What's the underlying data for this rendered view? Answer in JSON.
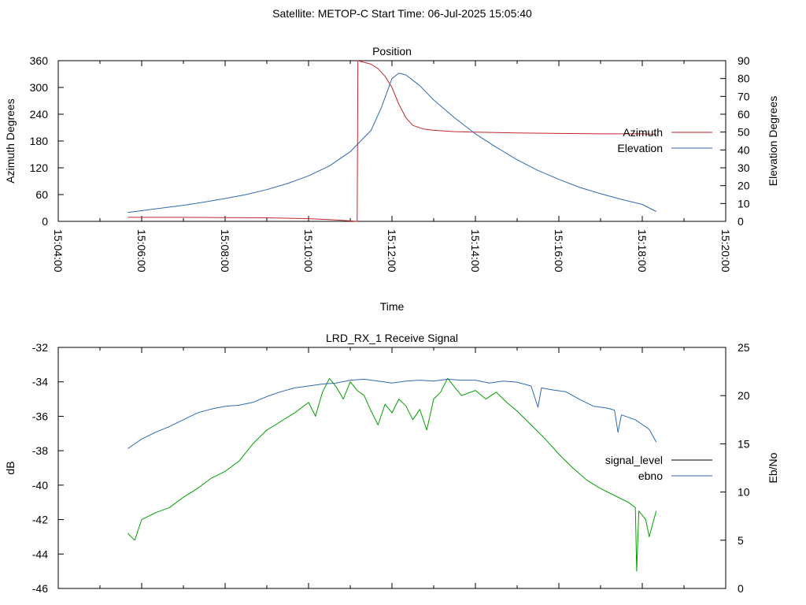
{
  "page_title": "Satellite: METOP-C    Start Time: 06-Jul-2025 15:05:40",
  "chart_data": [
    {
      "type": "line",
      "title": "Position",
      "xlabel": "Time",
      "ylabel": "Azimuth Degrees",
      "y2label": "Elevation Degrees",
      "xlim": [
        "15:04:00",
        "15:20:00"
      ],
      "ylim": [
        0,
        360
      ],
      "y2lim": [
        0,
        90
      ],
      "x_ticks": [
        "15:04:00",
        "15:06:00",
        "15:08:00",
        "15:10:00",
        "15:12:00",
        "15:14:00",
        "15:16:00",
        "15:18:00",
        "15:20:00"
      ],
      "y_ticks": [
        "0",
        "60",
        "120",
        "180",
        "240",
        "300",
        "360"
      ],
      "y2_ticks": [
        "0",
        "10",
        "20",
        "30",
        "40",
        "50",
        "60",
        "70",
        "80",
        "90"
      ],
      "legend_position": "right",
      "series": [
        {
          "name": "Azimuth",
          "axis": "y",
          "color": "#c0272d",
          "points": [
            [
              "15:05:40",
              9
            ],
            [
              "15:07:00",
              9
            ],
            [
              "15:08:00",
              8.5
            ],
            [
              "15:09:00",
              8
            ],
            [
              "15:10:00",
              6
            ],
            [
              "15:10:30",
              4
            ],
            [
              "15:11:00",
              1
            ],
            [
              "15:11:10",
              0
            ],
            [
              "15:11:11",
              360
            ],
            [
              "15:11:30",
              352
            ],
            [
              "15:11:40",
              342
            ],
            [
              "15:11:50",
              325
            ],
            [
              "15:12:00",
              300
            ],
            [
              "15:12:10",
              262
            ],
            [
              "15:12:20",
              232
            ],
            [
              "15:12:30",
              215
            ],
            [
              "15:12:45",
              207
            ],
            [
              "15:13:00",
              204
            ],
            [
              "15:13:30",
              201
            ],
            [
              "15:14:00",
              200
            ],
            [
              "15:15:00",
              198
            ],
            [
              "15:16:00",
              197
            ],
            [
              "15:17:00",
              196
            ],
            [
              "15:18:00",
              196
            ],
            [
              "15:18:20",
              195
            ]
          ]
        },
        {
          "name": "Elevation",
          "axis": "y2",
          "color": "#2e6ab2",
          "points": [
            [
              "15:05:40",
              5
            ],
            [
              "15:06:00",
              6
            ],
            [
              "15:06:30",
              7.5
            ],
            [
              "15:07:00",
              9
            ],
            [
              "15:07:30",
              10.8
            ],
            [
              "15:08:00",
              12.8
            ],
            [
              "15:08:30",
              15
            ],
            [
              "15:09:00",
              17.8
            ],
            [
              "15:09:30",
              21.2
            ],
            [
              "15:10:00",
              25.5
            ],
            [
              "15:10:30",
              31
            ],
            [
              "15:11:00",
              39
            ],
            [
              "15:11:30",
              51
            ],
            [
              "15:11:45",
              64
            ],
            [
              "15:12:00",
              80
            ],
            [
              "15:12:10",
              83
            ],
            [
              "15:12:20",
              82
            ],
            [
              "15:12:40",
              76
            ],
            [
              "15:13:00",
              68
            ],
            [
              "15:13:30",
              58
            ],
            [
              "15:14:00",
              49
            ],
            [
              "15:14:30",
              41.5
            ],
            [
              "15:15:00",
              34.5
            ],
            [
              "15:15:30",
              28.5
            ],
            [
              "15:16:00",
              23.5
            ],
            [
              "15:16:30",
              19
            ],
            [
              "15:17:00",
              15.5
            ],
            [
              "15:17:30",
              12.3
            ],
            [
              "15:18:00",
              9.5
            ],
            [
              "15:18:20",
              5.5
            ]
          ]
        }
      ]
    },
    {
      "type": "line",
      "title": "LRD_RX_1 Receive Signal",
      "ylabel": "dB",
      "y2label": "Eb/No",
      "xlim": [
        "15:04:00",
        "15:20:00"
      ],
      "ylim": [
        -46,
        -32
      ],
      "y2lim": [
        0,
        25
      ],
      "y_ticks": [
        "-46",
        "-44",
        "-42",
        "-40",
        "-38",
        "-36",
        "-34",
        "-32"
      ],
      "y2_ticks": [
        "0",
        "5",
        "10",
        "15",
        "20",
        "25"
      ],
      "legend_position": "right",
      "series": [
        {
          "name": "signal_level",
          "axis": "y",
          "color": "#00a000",
          "legend_color": "#000000",
          "points": [
            [
              "15:05:40",
              -42.8
            ],
            [
              "15:05:50",
              -43.2
            ],
            [
              "15:06:00",
              -42.0
            ],
            [
              "15:06:20",
              -41.6
            ],
            [
              "15:06:40",
              -41.3
            ],
            [
              "15:07:00",
              -40.7
            ],
            [
              "15:07:20",
              -40.2
            ],
            [
              "15:07:40",
              -39.6
            ],
            [
              "15:08:00",
              -39.2
            ],
            [
              "15:08:20",
              -38.6
            ],
            [
              "15:08:40",
              -37.6
            ],
            [
              "15:09:00",
              -36.8
            ],
            [
              "15:09:20",
              -36.3
            ],
            [
              "15:09:40",
              -35.8
            ],
            [
              "15:10:00",
              -35.2
            ],
            [
              "15:10:10",
              -36.0
            ],
            [
              "15:10:20",
              -34.6
            ],
            [
              "15:10:30",
              -33.8
            ],
            [
              "15:10:40",
              -34.3
            ],
            [
              "15:10:50",
              -35.0
            ],
            [
              "15:11:00",
              -34.0
            ],
            [
              "15:11:10",
              -34.5
            ],
            [
              "15:11:20",
              -34.8
            ],
            [
              "15:11:30",
              -35.7
            ],
            [
              "15:11:40",
              -36.5
            ],
            [
              "15:11:50",
              -35.3
            ],
            [
              "15:12:00",
              -35.8
            ],
            [
              "15:12:10",
              -35.0
            ],
            [
              "15:12:20",
              -35.4
            ],
            [
              "15:12:30",
              -36.2
            ],
            [
              "15:12:40",
              -35.6
            ],
            [
              "15:12:50",
              -36.8
            ],
            [
              "15:13:00",
              -35.0
            ],
            [
              "15:13:10",
              -34.6
            ],
            [
              "15:13:20",
              -33.8
            ],
            [
              "15:13:30",
              -34.3
            ],
            [
              "15:13:40",
              -34.8
            ],
            [
              "15:14:00",
              -34.5
            ],
            [
              "15:14:15",
              -35.0
            ],
            [
              "15:14:30",
              -34.6
            ],
            [
              "15:14:45",
              -35.2
            ],
            [
              "15:15:00",
              -35.7
            ],
            [
              "15:15:20",
              -36.5
            ],
            [
              "15:15:40",
              -37.3
            ],
            [
              "15:16:00",
              -38.2
            ],
            [
              "15:16:20",
              -39.0
            ],
            [
              "15:16:40",
              -39.7
            ],
            [
              "15:17:00",
              -40.2
            ],
            [
              "15:17:20",
              -40.6
            ],
            [
              "15:17:40",
              -41.0
            ],
            [
              "15:17:50",
              -41.3
            ],
            [
              "15:17:52",
              -45.0
            ],
            [
              "15:17:55",
              -41.5
            ],
            [
              "15:18:05",
              -42.0
            ],
            [
              "15:18:10",
              -43.0
            ],
            [
              "15:18:20",
              -41.5
            ]
          ]
        },
        {
          "name": "ebno",
          "axis": "y2",
          "color": "#2e6ab2",
          "points": [
            [
              "15:05:40",
              14.5
            ],
            [
              "15:06:00",
              15.5
            ],
            [
              "15:06:20",
              16.2
            ],
            [
              "15:06:40",
              16.8
            ],
            [
              "15:07:00",
              17.5
            ],
            [
              "15:07:20",
              18.2
            ],
            [
              "15:07:40",
              18.6
            ],
            [
              "15:08:00",
              18.9
            ],
            [
              "15:08:20",
              19.0
            ],
            [
              "15:08:40",
              19.3
            ],
            [
              "15:09:00",
              19.9
            ],
            [
              "15:09:20",
              20.4
            ],
            [
              "15:09:40",
              20.8
            ],
            [
              "15:10:00",
              21.0
            ],
            [
              "15:10:20",
              21.2
            ],
            [
              "15:10:40",
              21.3
            ],
            [
              "15:11:00",
              21.6
            ],
            [
              "15:11:20",
              21.7
            ],
            [
              "15:11:40",
              21.5
            ],
            [
              "15:12:00",
              21.3
            ],
            [
              "15:12:20",
              21.5
            ],
            [
              "15:12:40",
              21.6
            ],
            [
              "15:13:00",
              21.5
            ],
            [
              "15:13:20",
              21.7
            ],
            [
              "15:13:40",
              21.6
            ],
            [
              "15:14:00",
              21.6
            ],
            [
              "15:14:20",
              21.3
            ],
            [
              "15:14:40",
              21.5
            ],
            [
              "15:15:00",
              21.4
            ],
            [
              "15:15:20",
              21.0
            ],
            [
              "15:15:30",
              18.8
            ],
            [
              "15:15:35",
              20.8
            ],
            [
              "15:15:50",
              20.6
            ],
            [
              "15:16:10",
              20.4
            ],
            [
              "15:16:30",
              19.6
            ],
            [
              "15:16:50",
              18.9
            ],
            [
              "15:17:10",
              18.7
            ],
            [
              "15:17:20",
              18.5
            ],
            [
              "15:17:25",
              16.2
            ],
            [
              "15:17:30",
              18.0
            ],
            [
              "15:17:50",
              17.5
            ],
            [
              "15:18:10",
              16.5
            ],
            [
              "15:18:20",
              15.2
            ]
          ]
        }
      ]
    }
  ]
}
